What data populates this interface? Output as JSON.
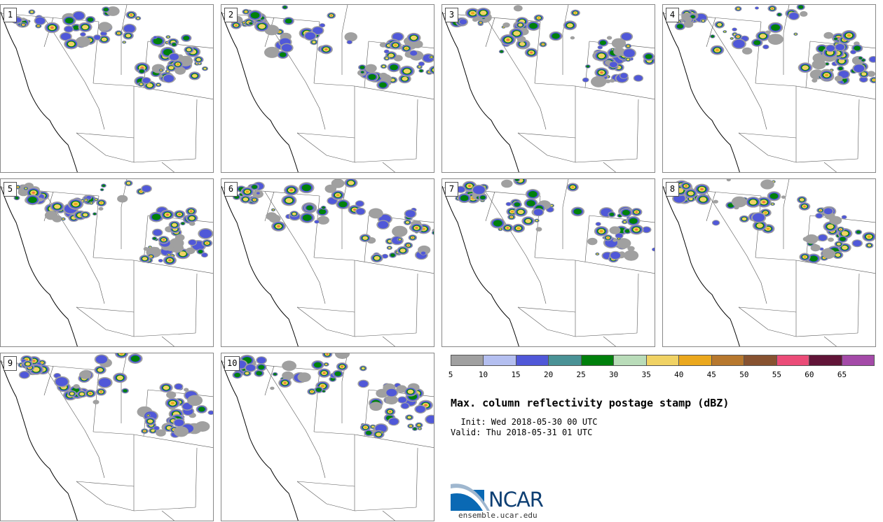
{
  "panels": [
    {
      "label": "1",
      "seed": 11
    },
    {
      "label": "2",
      "seed": 22
    },
    {
      "label": "3",
      "seed": 33
    },
    {
      "label": "4",
      "seed": 44
    },
    {
      "label": "5",
      "seed": 55
    },
    {
      "label": "6",
      "seed": 66
    },
    {
      "label": "7",
      "seed": 77
    },
    {
      "label": "8",
      "seed": 88
    },
    {
      "label": "9",
      "seed": 99
    },
    {
      "label": "10",
      "seed": 110
    }
  ],
  "colorbar": {
    "colors": [
      "#a0a0a0",
      "#b4bff0",
      "#5058d8",
      "#4a9296",
      "#00800c",
      "#b9dcb9",
      "#f0d264",
      "#eba81e",
      "#b7782e",
      "#875230",
      "#eb4c78",
      "#611438",
      "#a44aa8"
    ],
    "ticks": [
      "5",
      "10",
      "15",
      "20",
      "25",
      "30",
      "35",
      "40",
      "45",
      "50",
      "55",
      "60",
      "65"
    ]
  },
  "title": "Max. column reflectivity postage stamp (dBZ)",
  "init": "  Init: Wed 2018-05-30 00 UTC",
  "valid": "Valid: Thu 2018-05-31 01 UTC",
  "logo": {
    "name": "NCAR",
    "url": "ensemble.ucar.edu"
  }
}
